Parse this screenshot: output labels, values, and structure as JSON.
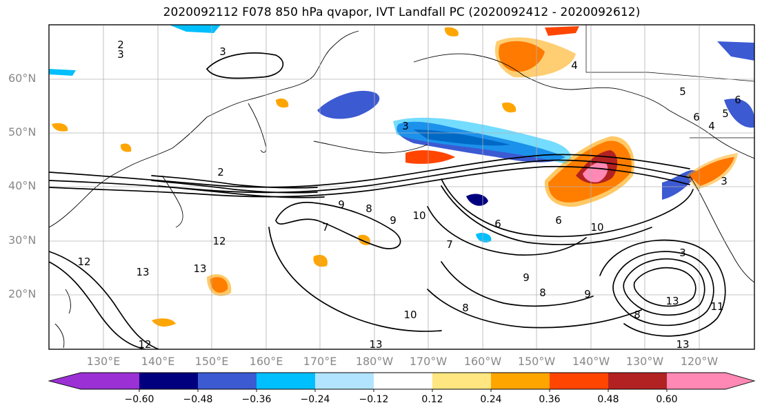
{
  "title": "2020092112 F078 850 hPa qvapor, IVT Landfall PC (2020092412 - 2020092612)",
  "lat_labels": [
    "60°N",
    "50°N",
    "40°N",
    "30°N",
    "20°N"
  ],
  "lon_labels": [
    "130°E",
    "140°E",
    "150°E",
    "160°E",
    "170°E",
    "180°W",
    "170°W",
    "160°W",
    "150°W",
    "140°W",
    "130°W",
    "120°W"
  ],
  "contour_labels": [
    "2",
    "3",
    "3",
    "3",
    "4",
    "5",
    "6",
    "2",
    "9",
    "8",
    "7",
    "9",
    "10",
    "6",
    "6",
    "10",
    "12",
    "13",
    "12",
    "13",
    "10",
    "13",
    "9",
    "8",
    "7",
    "8",
    "9",
    "3",
    "13",
    "11",
    "8",
    "13",
    "3",
    "4",
    "5",
    "6",
    "12"
  ],
  "colorbar": {
    "ticks": [
      "−0.60",
      "−0.48",
      "−0.36",
      "−0.24",
      "−0.12",
      "0.12",
      "0.24",
      "0.36",
      "0.48",
      "0.60"
    ],
    "colors": [
      "#9b30d4",
      "#00007f",
      "#3c5ad2",
      "#00bfff",
      "#b2e4ff",
      "#ffffff",
      "#ffe680",
      "#ffa500",
      "#ff4500",
      "#b22222",
      "#ff88b4",
      "#ff88b4"
    ]
  },
  "colors": {
    "coast": "#000000",
    "grid": "#b0b0b0",
    "contour": "#000000"
  }
}
